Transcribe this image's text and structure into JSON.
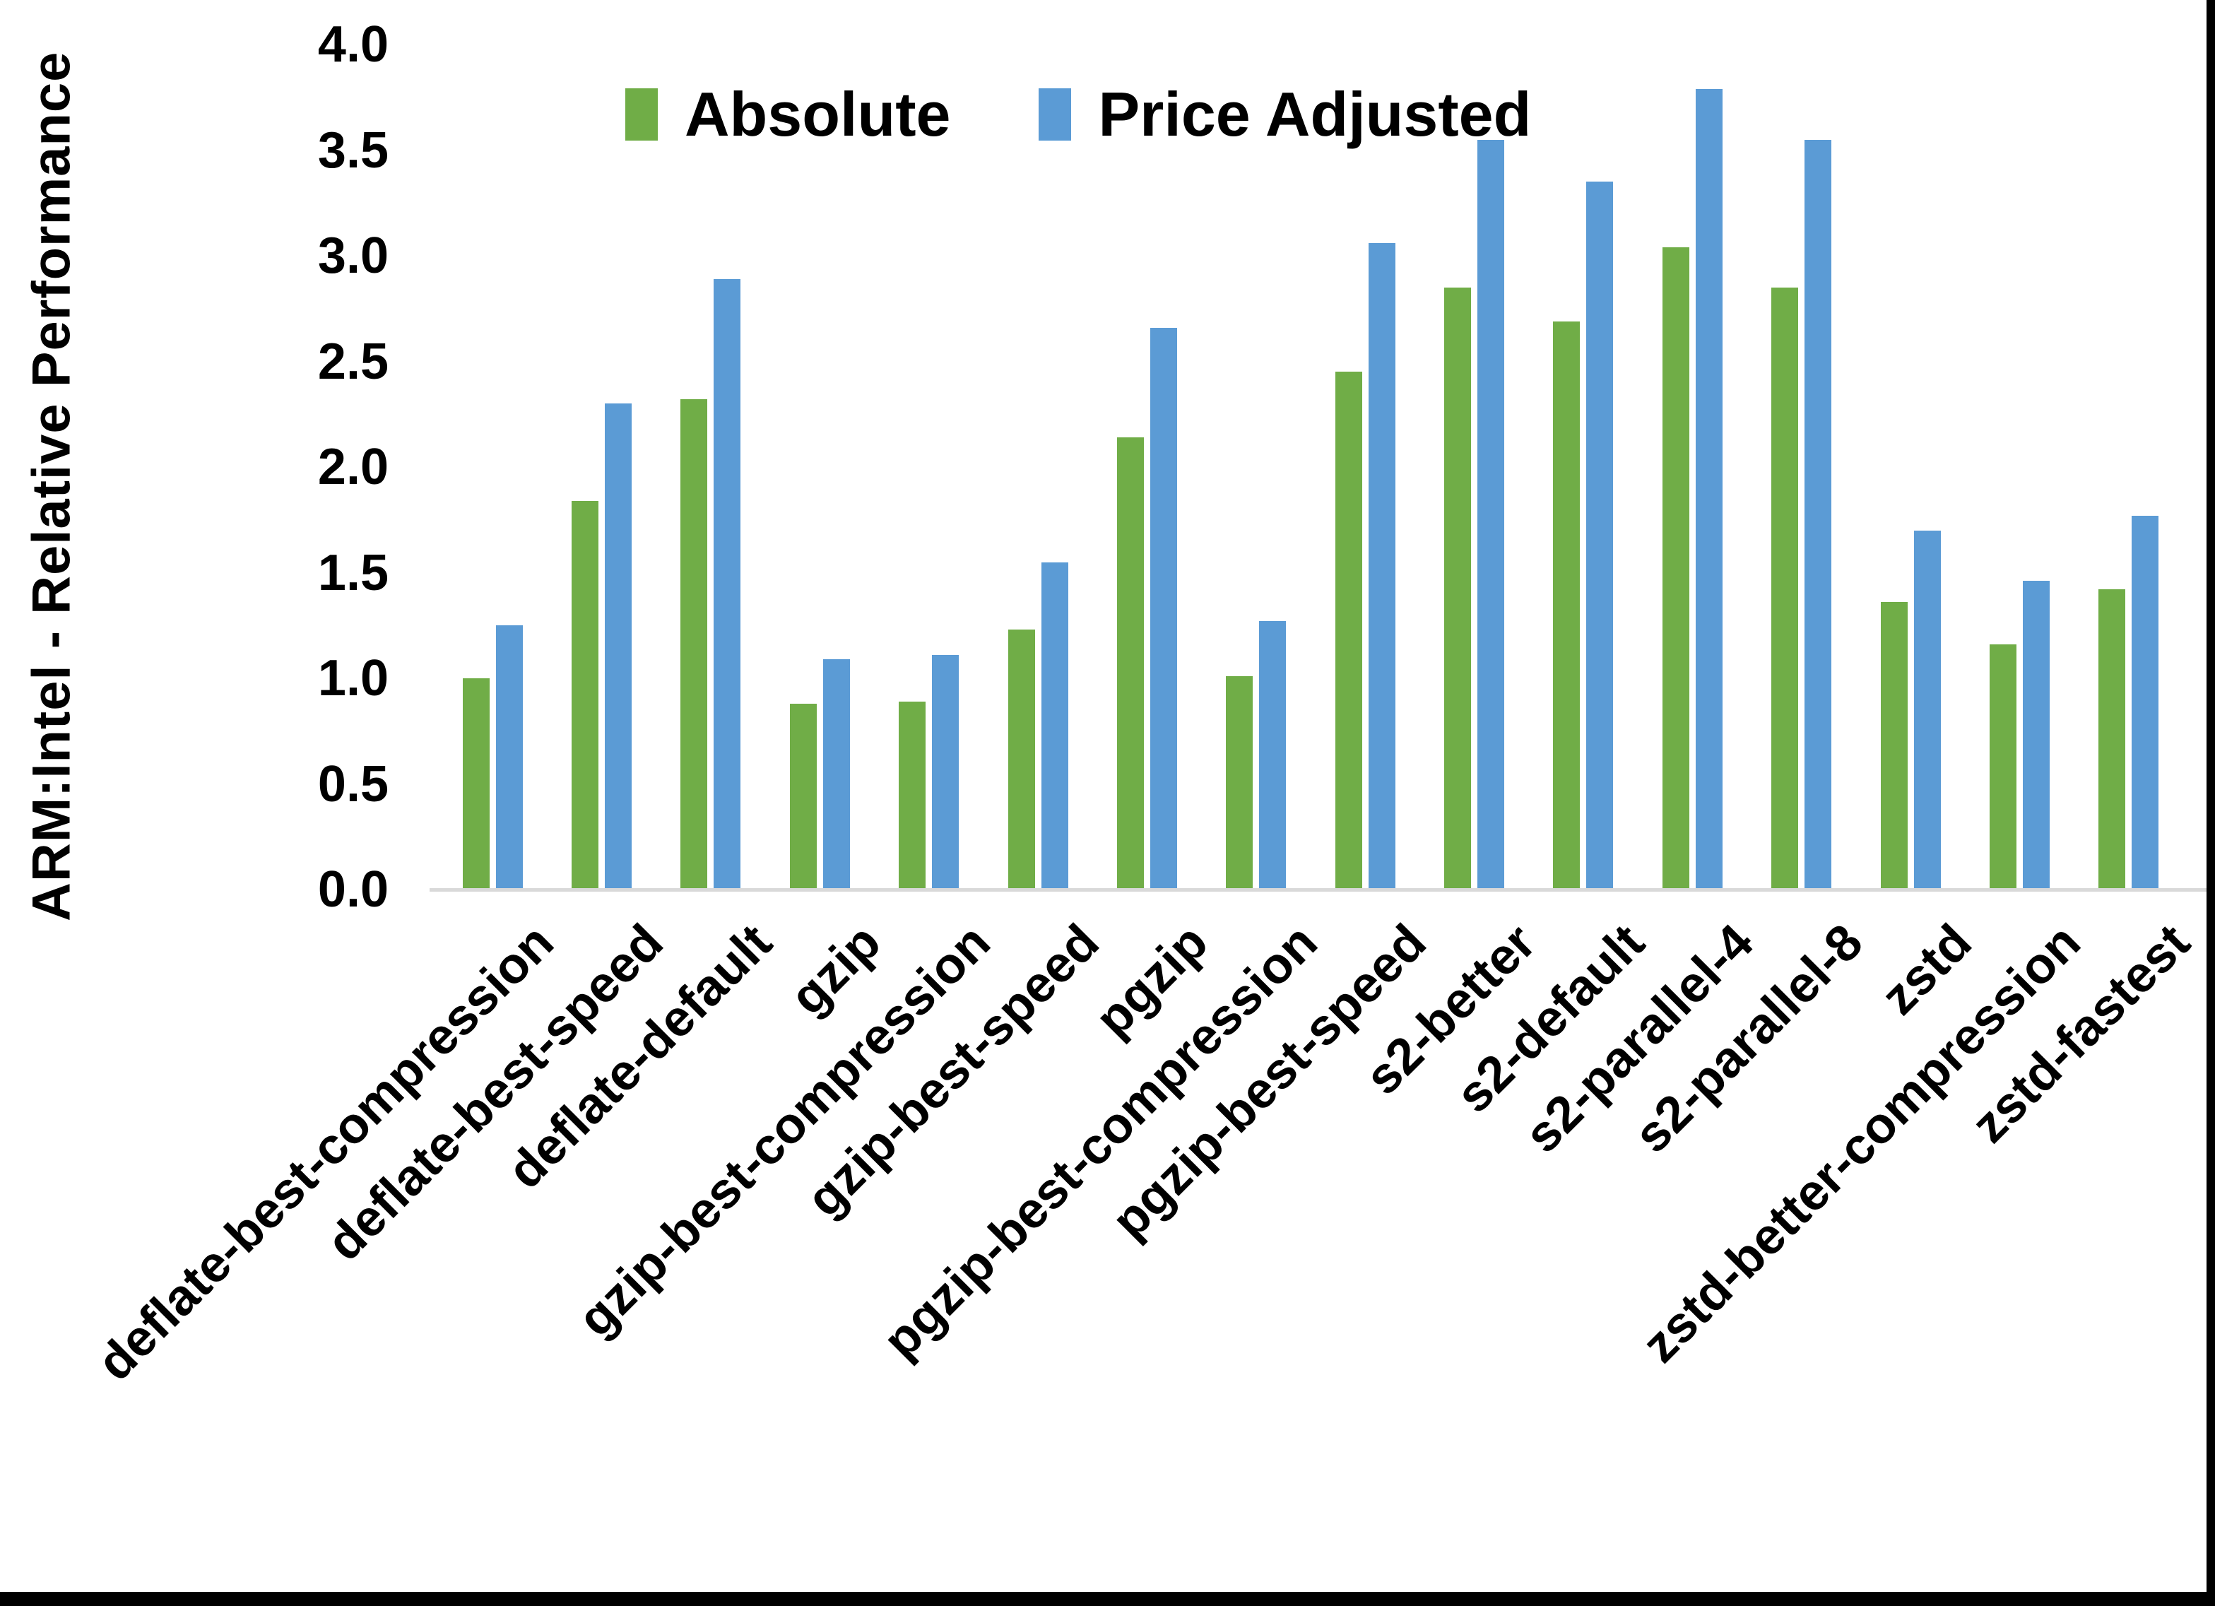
{
  "chart_data": {
    "type": "bar",
    "title": "",
    "ylabel": "ARM:Intel - Relative Performance",
    "xlabel": "",
    "ylim": [
      0.0,
      4.0
    ],
    "ytick_step": 0.5,
    "ytick_decimals": 1,
    "grid": false,
    "legend_position": "top-center",
    "background": "#FFFFFF",
    "axis_line_color": "#D9D9D9",
    "text_color": "#000000",
    "categories": [
      "deflate-best-compression",
      "deflate-best-speed",
      "deflate-default",
      "gzip",
      "gzip-best-compression",
      "gzip-best-speed",
      "pgzip",
      "pgzip-best-compression",
      "pgzip-best-speed",
      "s2-better",
      "s2-default",
      "s2-parallel-4",
      "s2-parallel-8",
      "zstd",
      "zstd-better-compression",
      "zstd-fastest"
    ],
    "series": [
      {
        "name": "Absolute",
        "color": "#70AD47",
        "values": [
          1.0,
          1.84,
          2.32,
          0.88,
          0.89,
          1.23,
          2.14,
          1.01,
          2.45,
          2.85,
          2.69,
          3.04,
          2.85,
          1.36,
          1.16,
          1.42
        ]
      },
      {
        "name": "Price Adjusted",
        "color": "#5B9BD5",
        "values": [
          1.25,
          2.3,
          2.89,
          1.09,
          1.11,
          1.55,
          2.66,
          1.27,
          3.06,
          3.55,
          3.35,
          3.79,
          3.55,
          1.7,
          1.46,
          1.77
        ]
      }
    ]
  },
  "frame": {
    "border_color": "#000000"
  }
}
